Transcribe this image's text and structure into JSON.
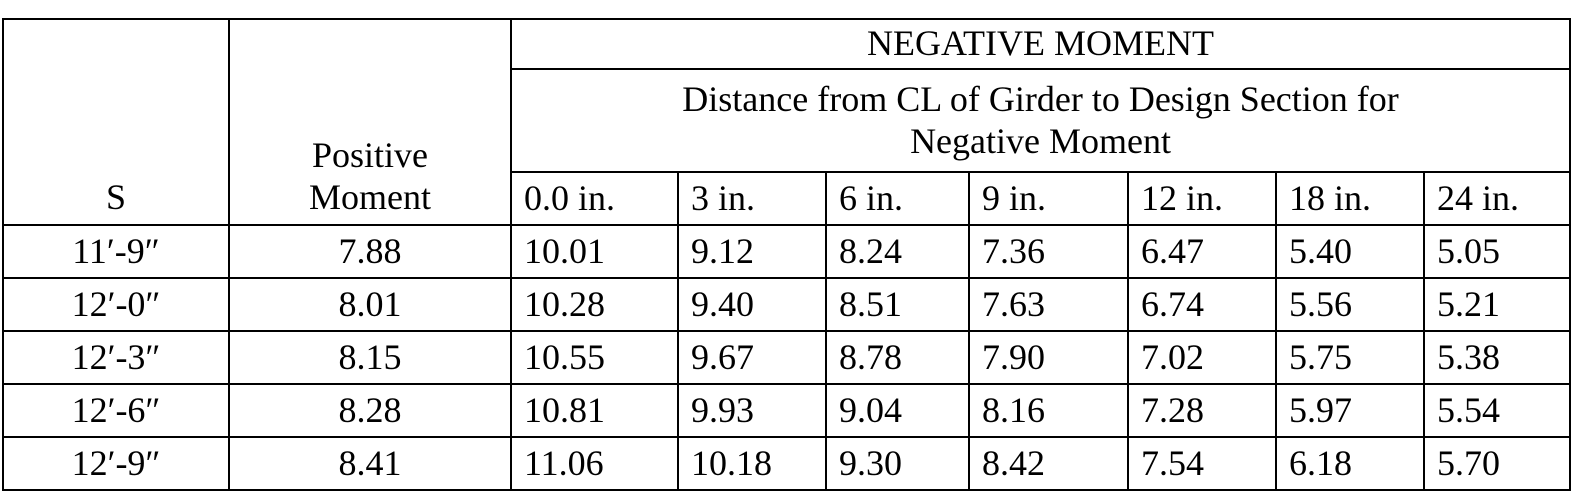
{
  "table": {
    "s_header": "S",
    "positive_header": {
      "line1": "Positive",
      "line2": "Moment"
    },
    "negative_moment_header": "NEGATIVE MOMENT",
    "distance_header": {
      "line1": "Distance from CL of Girder to Design Section for",
      "line2": "Negative Moment"
    },
    "sub_headers": [
      "0.0 in.",
      "3 in.",
      "6 in.",
      "9 in.",
      "12 in.",
      "18 in.",
      "24 in."
    ],
    "rows": [
      {
        "s": "11′-9″",
        "positive_moment": "7.88",
        "negative_moments": [
          "10.01",
          "9.12",
          "8.24",
          "7.36",
          "6.47",
          "5.40",
          "5.05"
        ]
      },
      {
        "s": "12′-0″",
        "positive_moment": "8.01",
        "negative_moments": [
          "10.28",
          "9.40",
          "8.51",
          "7.63",
          "6.74",
          "5.56",
          "5.21"
        ]
      },
      {
        "s": "12′-3″",
        "positive_moment": "8.15",
        "negative_moments": [
          "10.55",
          "9.67",
          "8.78",
          "7.90",
          "7.02",
          "5.75",
          "5.38"
        ]
      },
      {
        "s": "12′-6″",
        "positive_moment": "8.28",
        "negative_moments": [
          "10.81",
          "9.93",
          "9.04",
          "8.16",
          "7.28",
          "5.97",
          "5.54"
        ]
      },
      {
        "s": "12′-9″",
        "positive_moment": "8.41",
        "negative_moments": [
          "11.06",
          "10.18",
          "9.30",
          "8.42",
          "7.54",
          "6.18",
          "5.70"
        ]
      }
    ]
  }
}
